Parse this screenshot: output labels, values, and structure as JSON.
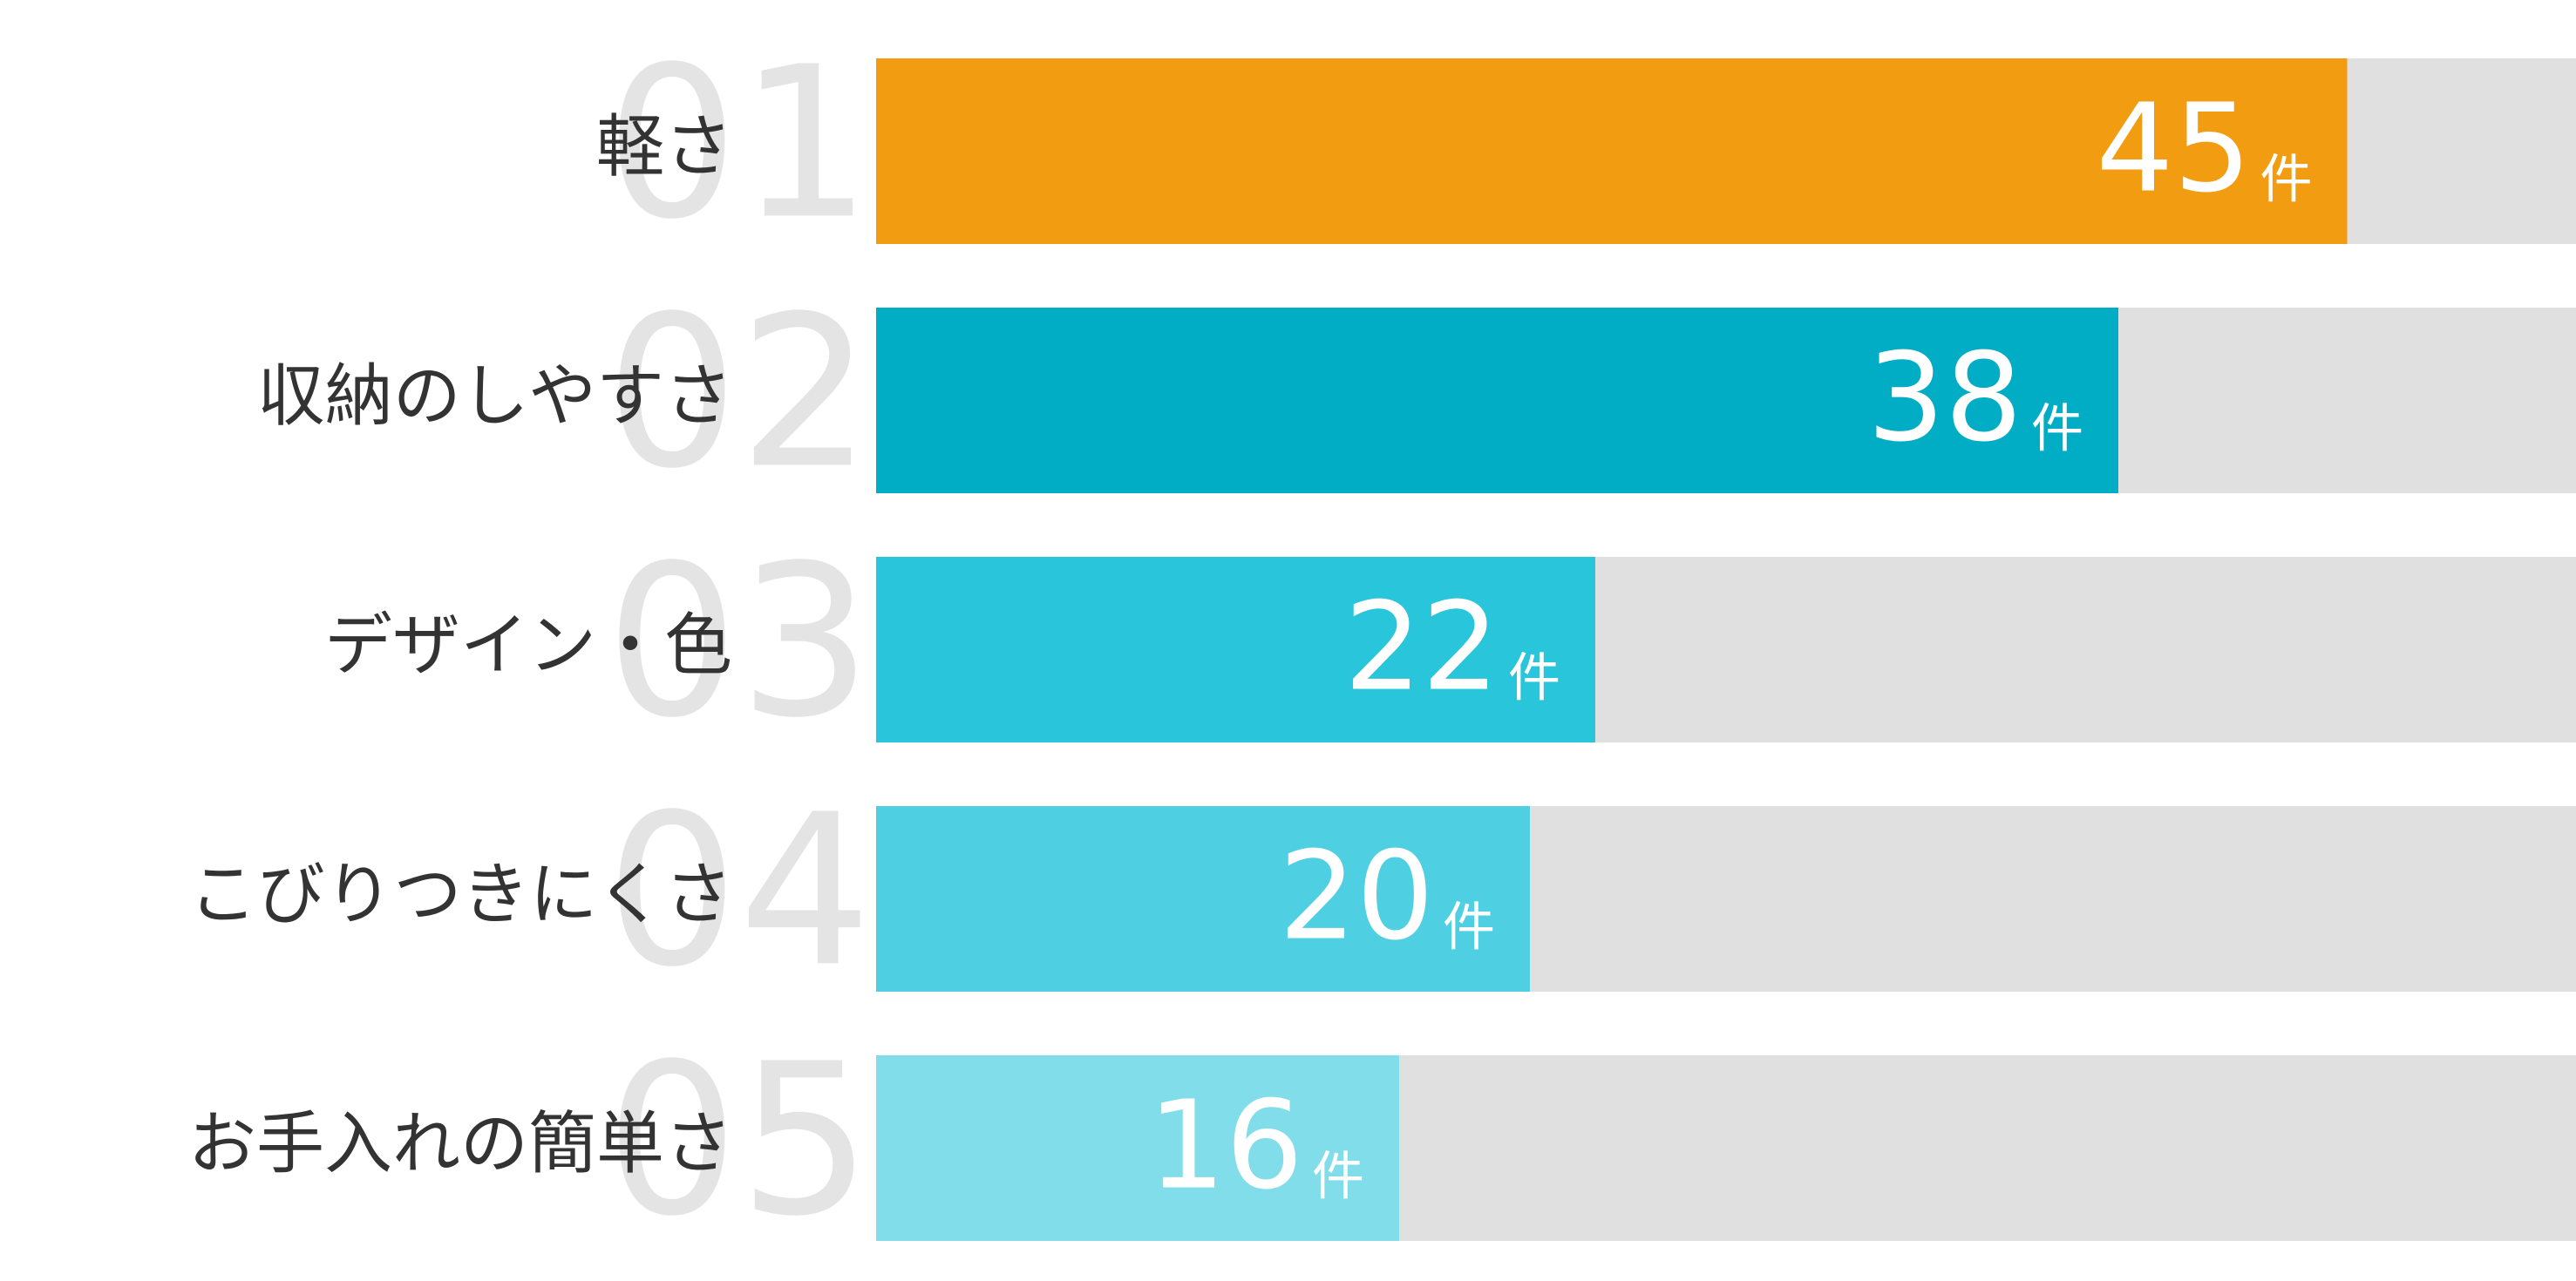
{
  "chart_data": {
    "type": "bar",
    "orientation": "horizontal",
    "categories": [
      "軽さ",
      "収納のしやすさ",
      "デザイン・色",
      "こびりつきにくさ",
      "お手入れの簡単さ"
    ],
    "ranks": [
      "01",
      "02",
      "03",
      "04",
      "05"
    ],
    "values": [
      45,
      38,
      22,
      20,
      16
    ],
    "unit": "件",
    "colors": [
      "#f29c12",
      "#00adc5",
      "#29c5da",
      "#4ed0e2",
      "#80dde9"
    ],
    "xlim": [
      0,
      52
    ]
  }
}
